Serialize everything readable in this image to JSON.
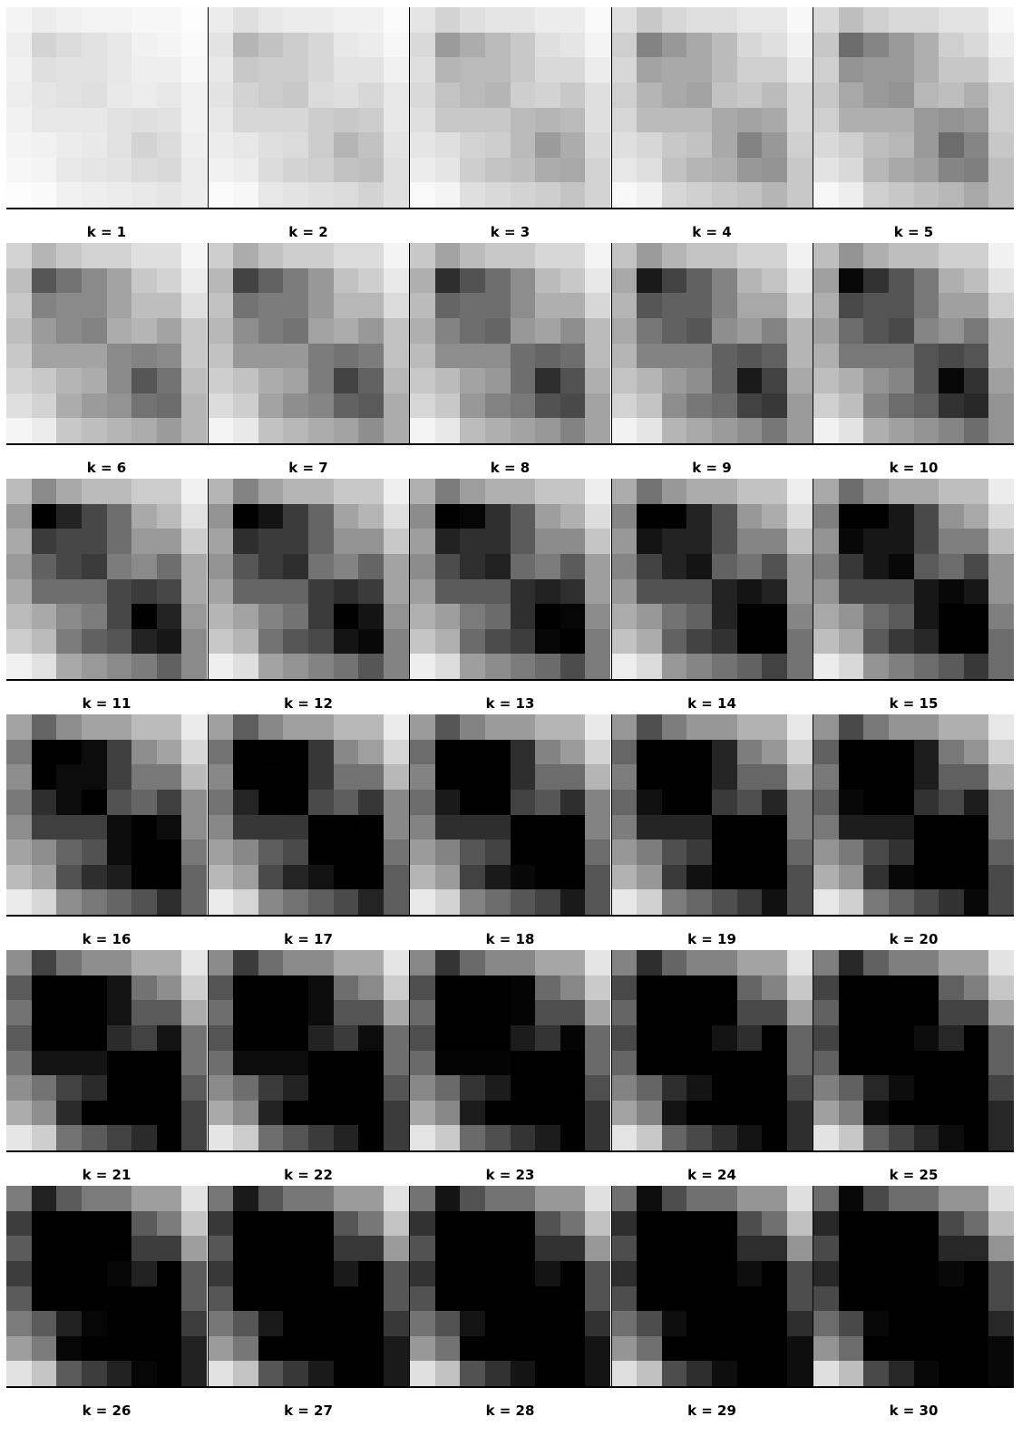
{
  "labels": [
    "k = 1",
    "k = 2",
    "k = 3",
    "k = 4",
    "k = 5",
    "k = 6",
    "k = 7",
    "k = 8",
    "k = 9",
    "k = 10",
    "k = 11",
    "k = 12",
    "k = 13",
    "k = 14",
    "k = 15",
    "k = 16",
    "k = 17",
    "k = 18",
    "k = 19",
    "k = 20",
    "k = 21",
    "k = 22",
    "k = 23",
    "k = 24",
    "k = 25",
    "k = 26",
    "k = 27",
    "k = 28",
    "k = 29",
    "k = 30"
  ],
  "k_count": 30,
  "columns": 5,
  "grid_cells": 8,
  "base_intensity": [
    [
      0.15,
      0.3,
      0.2,
      0.15,
      0.15,
      0.1,
      0.1,
      0.02
    ],
    [
      0.25,
      0.9,
      0.7,
      0.55,
      0.4,
      0.2,
      0.15,
      0.05
    ],
    [
      0.2,
      0.6,
      0.55,
      0.55,
      0.4,
      0.25,
      0.25,
      0.1
    ],
    [
      0.25,
      0.45,
      0.55,
      0.6,
      0.35,
      0.3,
      0.4,
      0.2
    ],
    [
      0.2,
      0.4,
      0.4,
      0.4,
      0.55,
      0.6,
      0.55,
      0.2
    ],
    [
      0.15,
      0.2,
      0.3,
      0.35,
      0.55,
      0.9,
      0.7,
      0.25
    ],
    [
      0.1,
      0.15,
      0.35,
      0.45,
      0.5,
      0.7,
      0.75,
      0.3
    ],
    [
      0.02,
      0.05,
      0.2,
      0.25,
      0.3,
      0.35,
      0.45,
      0.3
    ]
  ],
  "gamma": 0.75,
  "colors": {
    "background": "#ffffff",
    "cell_min": "#ffffff",
    "cell_max": "#000000",
    "rule": "#000000"
  }
}
